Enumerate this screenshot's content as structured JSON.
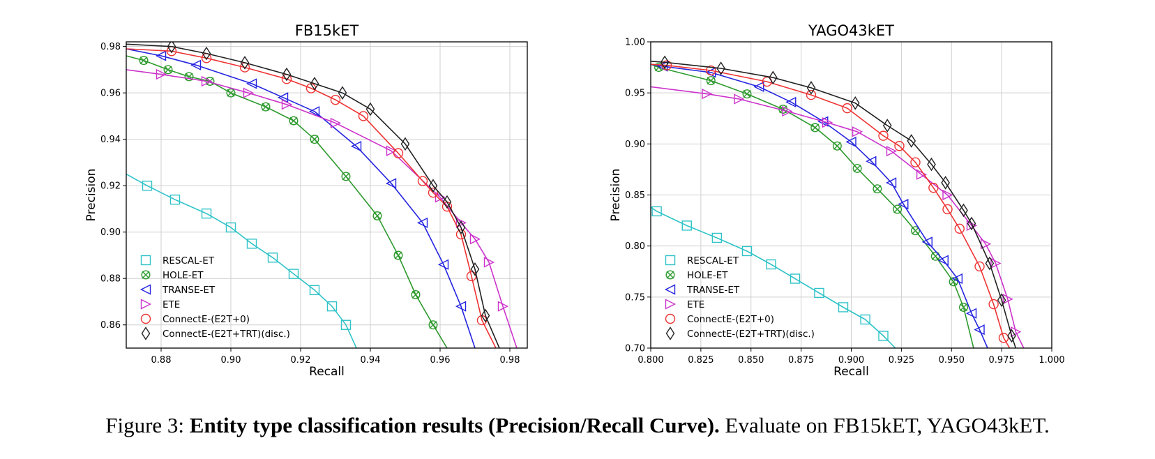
{
  "chart_data": [
    {
      "type": "line",
      "title": "FB15kET",
      "xlabel": "Recall",
      "ylabel": "Precision",
      "xlim": [
        0.87,
        0.985
      ],
      "ylim": [
        0.85,
        0.982
      ],
      "xticks": [
        "0.88",
        "0.90",
        "0.92",
        "0.94",
        "0.96",
        "0.98"
      ],
      "xtick_values": [
        0.88,
        0.9,
        0.92,
        0.94,
        0.96,
        0.98
      ],
      "yticks": [
        "0.86",
        "0.88",
        "0.90",
        "0.92",
        "0.94",
        "0.96",
        "0.98"
      ],
      "ytick_values": [
        0.86,
        0.88,
        0.9,
        0.92,
        0.94,
        0.96,
        0.98
      ],
      "grid": true,
      "legend": "lower-left",
      "series": [
        {
          "name": "RESCAL-ET",
          "color": "#2fc3c8",
          "marker": "square",
          "x": [
            0.87,
            0.876,
            0.884,
            0.893,
            0.9,
            0.906,
            0.912,
            0.918,
            0.924,
            0.929,
            0.933,
            0.936
          ],
          "y": [
            0.925,
            0.92,
            0.914,
            0.908,
            0.902,
            0.895,
            0.889,
            0.882,
            0.875,
            0.868,
            0.86,
            0.85
          ]
        },
        {
          "name": "HOLE-ET",
          "color": "#2e9a2e",
          "marker": "hex-cross",
          "x": [
            0.87,
            0.875,
            0.882,
            0.888,
            0.894,
            0.9,
            0.91,
            0.918,
            0.924,
            0.933,
            0.942,
            0.948,
            0.953,
            0.958,
            0.962
          ],
          "y": [
            0.976,
            0.974,
            0.97,
            0.967,
            0.965,
            0.96,
            0.954,
            0.948,
            0.94,
            0.924,
            0.907,
            0.89,
            0.873,
            0.86,
            0.85
          ]
        },
        {
          "name": "TRANSE-ET",
          "color": "#2424e0",
          "marker": "triangle-left",
          "x": [
            0.87,
            0.88,
            0.89,
            0.906,
            0.915,
            0.924,
            0.936,
            0.946,
            0.955,
            0.961,
            0.966,
            0.97
          ],
          "y": [
            0.979,
            0.976,
            0.972,
            0.964,
            0.958,
            0.952,
            0.937,
            0.921,
            0.904,
            0.886,
            0.868,
            0.85
          ]
        },
        {
          "name": "ETE",
          "color": "#cc33cc",
          "marker": "triangle-right",
          "x": [
            0.87,
            0.88,
            0.893,
            0.905,
            0.916,
            0.93,
            0.946,
            0.96,
            0.966,
            0.97,
            0.974,
            0.978,
            0.982
          ],
          "y": [
            0.97,
            0.968,
            0.965,
            0.96,
            0.955,
            0.947,
            0.935,
            0.915,
            0.904,
            0.897,
            0.887,
            0.868,
            0.85
          ]
        },
        {
          "name": "ConnectE-(E2T+0)",
          "color": "#ee3333",
          "marker": "circle",
          "x": [
            0.87,
            0.883,
            0.893,
            0.904,
            0.916,
            0.923,
            0.93,
            0.938,
            0.948,
            0.955,
            0.958,
            0.962,
            0.966,
            0.969,
            0.972,
            0.976
          ],
          "y": [
            0.979,
            0.978,
            0.975,
            0.971,
            0.966,
            0.962,
            0.957,
            0.95,
            0.934,
            0.922,
            0.917,
            0.911,
            0.899,
            0.881,
            0.862,
            0.85
          ]
        },
        {
          "name": "ConnectE-(E2T+TRT)(disc.)",
          "color": "#222222",
          "marker": "diamond",
          "x": [
            0.87,
            0.883,
            0.893,
            0.904,
            0.916,
            0.924,
            0.932,
            0.94,
            0.95,
            0.958,
            0.962,
            0.966,
            0.97,
            0.973,
            0.977
          ],
          "y": [
            0.981,
            0.98,
            0.977,
            0.973,
            0.968,
            0.964,
            0.96,
            0.953,
            0.938,
            0.92,
            0.913,
            0.902,
            0.884,
            0.864,
            0.85
          ]
        }
      ]
    },
    {
      "type": "line",
      "title": "YAGO43kET",
      "xlabel": "Recall",
      "ylabel": "Precision",
      "xlim": [
        0.8,
        1.0
      ],
      "ylim": [
        0.7,
        1.0
      ],
      "xticks": [
        "0.800",
        "0.825",
        "0.850",
        "0.875",
        "0.900",
        "0.925",
        "0.950",
        "0.975",
        "1.000"
      ],
      "xtick_values": [
        0.8,
        0.825,
        0.85,
        0.875,
        0.9,
        0.925,
        0.95,
        0.975,
        1.0
      ],
      "yticks": [
        "0.70",
        "0.75",
        "0.80",
        "0.85",
        "0.90",
        "0.95",
        "1.00"
      ],
      "ytick_values": [
        0.7,
        0.75,
        0.8,
        0.85,
        0.9,
        0.95,
        1.0
      ],
      "grid": true,
      "legend": "lower-left",
      "series": [
        {
          "name": "RESCAL-ET",
          "color": "#2fc3c8",
          "marker": "square",
          "x": [
            0.8,
            0.803,
            0.818,
            0.833,
            0.848,
            0.86,
            0.872,
            0.884,
            0.896,
            0.907,
            0.916,
            0.922
          ],
          "y": [
            0.838,
            0.834,
            0.82,
            0.808,
            0.795,
            0.782,
            0.768,
            0.754,
            0.74,
            0.728,
            0.712,
            0.7
          ]
        },
        {
          "name": "HOLE-ET",
          "color": "#2e9a2e",
          "marker": "hex-cross",
          "x": [
            0.8,
            0.804,
            0.83,
            0.848,
            0.866,
            0.882,
            0.893,
            0.903,
            0.913,
            0.923,
            0.932,
            0.942,
            0.951,
            0.956,
            0.961
          ],
          "y": [
            0.978,
            0.975,
            0.962,
            0.949,
            0.934,
            0.916,
            0.898,
            0.876,
            0.856,
            0.836,
            0.815,
            0.79,
            0.765,
            0.74,
            0.7
          ]
        },
        {
          "name": "TRANSE-ET",
          "color": "#2424e0",
          "marker": "triangle-left",
          "x": [
            0.8,
            0.806,
            0.83,
            0.854,
            0.87,
            0.886,
            0.9,
            0.91,
            0.92,
            0.926,
            0.938,
            0.946,
            0.953,
            0.96,
            0.964,
            0.968
          ],
          "y": [
            0.978,
            0.976,
            0.97,
            0.956,
            0.941,
            0.922,
            0.902,
            0.883,
            0.862,
            0.841,
            0.804,
            0.786,
            0.768,
            0.734,
            0.718,
            0.7
          ]
        },
        {
          "name": "ETE",
          "color": "#cc33cc",
          "marker": "triangle-right",
          "x": [
            0.8,
            0.828,
            0.844,
            0.868,
            0.888,
            0.903,
            0.92,
            0.935,
            0.948,
            0.96,
            0.967,
            0.972,
            0.978,
            0.982,
            0.986
          ],
          "y": [
            0.956,
            0.949,
            0.944,
            0.932,
            0.921,
            0.912,
            0.893,
            0.87,
            0.85,
            0.82,
            0.802,
            0.783,
            0.748,
            0.716,
            0.7
          ]
        },
        {
          "name": "ConnectE-(E2T+0)",
          "color": "#ee3333",
          "marker": "circle",
          "x": [
            0.8,
            0.808,
            0.83,
            0.858,
            0.88,
            0.898,
            0.916,
            0.924,
            0.932,
            0.941,
            0.948,
            0.954,
            0.964,
            0.971,
            0.976,
            0.979
          ],
          "y": [
            0.978,
            0.977,
            0.972,
            0.961,
            0.948,
            0.935,
            0.908,
            0.898,
            0.882,
            0.857,
            0.836,
            0.817,
            0.78,
            0.743,
            0.71,
            0.7
          ]
        },
        {
          "name": "ConnectE-(E2T+TRT)(disc.)",
          "color": "#222222",
          "marker": "diamond",
          "x": [
            0.8,
            0.807,
            0.835,
            0.861,
            0.88,
            0.902,
            0.918,
            0.93,
            0.94,
            0.947,
            0.956,
            0.96,
            0.969,
            0.975,
            0.98,
            0.982
          ],
          "y": [
            0.981,
            0.98,
            0.974,
            0.965,
            0.955,
            0.94,
            0.918,
            0.903,
            0.88,
            0.862,
            0.835,
            0.822,
            0.783,
            0.747,
            0.712,
            0.7
          ]
        }
      ]
    }
  ],
  "caption": {
    "prefix": "Figure 3: ",
    "bold": "Entity type classification results (Precision/Recall Curve).",
    "rest": " Evaluate on FB15kET, YAGO43kET."
  }
}
